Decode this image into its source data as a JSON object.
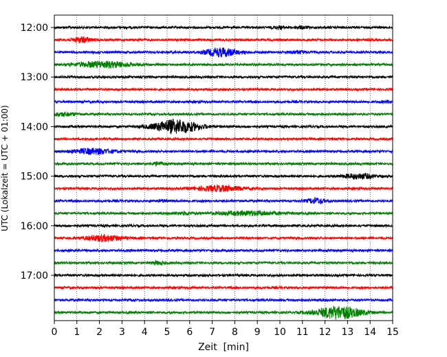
{
  "chart_data": {
    "type": "line",
    "title": "",
    "xlabel": "Zeit  [min]",
    "ylabel": "UTC (Lokalzeit = UTC + 01:00)",
    "xlim": [
      0,
      15
    ],
    "x_ticks": [
      0,
      1,
      2,
      3,
      4,
      5,
      6,
      7,
      8,
      9,
      10,
      11,
      12,
      13,
      14,
      15
    ],
    "x_tick_labels": [
      "0",
      "1",
      "2",
      "3",
      "4",
      "5",
      "6",
      "7",
      "8",
      "9",
      "10",
      "11",
      "12",
      "13",
      "14",
      "15"
    ],
    "y_tick_labels": [
      "12:00",
      "13:00",
      "14:00",
      "15:00",
      "16:00",
      "17:00"
    ],
    "grid": "vertical dotted",
    "trace_interval_min": 15,
    "start_time": "12:00",
    "colors": [
      "#000000",
      "#ff0000",
      "#0000ff",
      "#008000"
    ],
    "traces": [
      {
        "start": "12:00",
        "color": "#000000",
        "events": [
          {
            "t": 10.0,
            "amp": 0.6,
            "dur": 0.3
          },
          {
            "t": 11.0,
            "amp": 0.6,
            "dur": 0.3
          }
        ]
      },
      {
        "start": "12:15",
        "color": "#ff0000",
        "events": [
          {
            "t": 1.2,
            "amp": 1.6,
            "dur": 0.4
          }
        ]
      },
      {
        "start": "12:30",
        "color": "#0000ff",
        "events": [
          {
            "t": 7.4,
            "amp": 2.5,
            "dur": 0.7
          },
          {
            "t": 10.8,
            "amp": 0.8,
            "dur": 0.4
          }
        ]
      },
      {
        "start": "12:45",
        "color": "#008000",
        "events": [
          {
            "t": 2.2,
            "amp": 1.8,
            "dur": 1.2
          }
        ]
      },
      {
        "start": "13:00",
        "color": "#000000",
        "events": []
      },
      {
        "start": "13:15",
        "color": "#ff0000",
        "events": []
      },
      {
        "start": "13:30",
        "color": "#0000ff",
        "events": [
          {
            "t": 14.8,
            "amp": 0.6,
            "dur": 0.3
          }
        ]
      },
      {
        "start": "13:45",
        "color": "#008000",
        "events": [
          {
            "t": 0.4,
            "amp": 0.9,
            "dur": 0.6
          }
        ]
      },
      {
        "start": "14:00",
        "color": "#000000",
        "events": [
          {
            "t": 5.4,
            "amp": 4.0,
            "dur": 1.0
          }
        ]
      },
      {
        "start": "14:15",
        "color": "#ff0000",
        "events": []
      },
      {
        "start": "14:30",
        "color": "#0000ff",
        "events": [
          {
            "t": 1.7,
            "amp": 1.6,
            "dur": 0.9
          }
        ]
      },
      {
        "start": "14:45",
        "color": "#008000",
        "events": [
          {
            "t": 4.6,
            "amp": 0.9,
            "dur": 0.3
          }
        ]
      },
      {
        "start": "15:00",
        "color": "#000000",
        "events": [
          {
            "t": 13.5,
            "amp": 1.5,
            "dur": 0.7
          }
        ]
      },
      {
        "start": "15:15",
        "color": "#ff0000",
        "events": [
          {
            "t": 7.3,
            "amp": 1.6,
            "dur": 1.0
          }
        ]
      },
      {
        "start": "15:30",
        "color": "#0000ff",
        "events": [
          {
            "t": 11.6,
            "amp": 1.5,
            "dur": 0.4
          },
          {
            "t": 4.8,
            "amp": 0.6,
            "dur": 0.2
          }
        ]
      },
      {
        "start": "15:45",
        "color": "#008000",
        "events": [
          {
            "t": 8.6,
            "amp": 1.1,
            "dur": 1.5
          },
          {
            "t": 5.7,
            "amp": 0.6,
            "dur": 0.5
          }
        ]
      },
      {
        "start": "16:00",
        "color": "#000000",
        "events": []
      },
      {
        "start": "16:15",
        "color": "#ff0000",
        "events": [
          {
            "t": 2.2,
            "amp": 1.8,
            "dur": 0.8
          }
        ]
      },
      {
        "start": "16:30",
        "color": "#0000ff",
        "events": []
      },
      {
        "start": "16:45",
        "color": "#008000",
        "events": [
          {
            "t": 4.6,
            "amp": 0.8,
            "dur": 0.3
          }
        ]
      },
      {
        "start": "17:00",
        "color": "#000000",
        "events": []
      },
      {
        "start": "17:15",
        "color": "#ff0000",
        "events": []
      },
      {
        "start": "17:30",
        "color": "#0000ff",
        "events": []
      },
      {
        "start": "17:45",
        "color": "#008000",
        "events": [
          {
            "t": 12.6,
            "amp": 3.8,
            "dur": 1.0
          }
        ]
      }
    ]
  }
}
